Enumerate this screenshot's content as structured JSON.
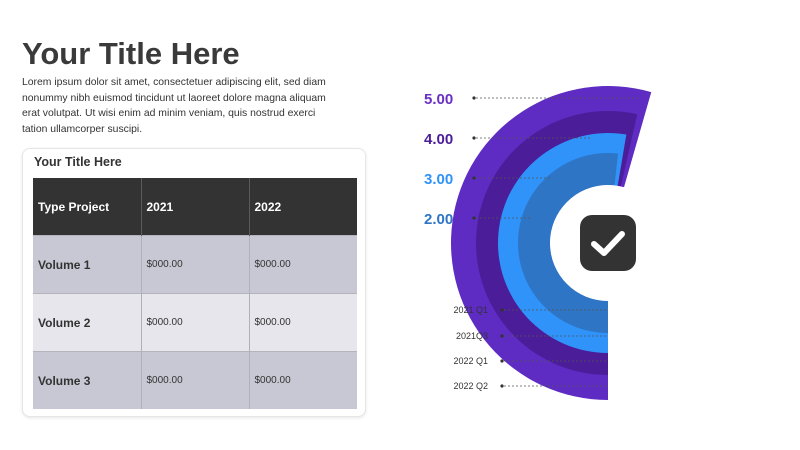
{
  "page": {
    "title": "Your Title Here",
    "body": "Lorem ipsum dolor sit amet, consectetuer adipiscing elit, sed diam nonummy nibh euismod tincidunt ut laoreet dolore magna aliquam erat volutpat. Ut wisi enim ad minim veniam, quis nostrud exerci tation ullamcorper suscipi."
  },
  "table": {
    "title": "Your Title Here",
    "headers": [
      "Type Project",
      "2021",
      "2022"
    ],
    "rows": [
      {
        "label": "Volume 1",
        "values": [
          "$000.00",
          "$000.00"
        ]
      },
      {
        "label": "Volume 2",
        "values": [
          "$000.00",
          "$000.00"
        ]
      },
      {
        "label": "Volume 3",
        "values": [
          "$000.00",
          "$000.00"
        ]
      }
    ]
  },
  "chart_data": {
    "type": "radial-bar",
    "title": "",
    "series": [
      {
        "category": "2021 Q1",
        "value": 2.0,
        "color": "#2E75C6"
      },
      {
        "category": "2021Q3",
        "value": 3.0,
        "color": "#2F93F9"
      },
      {
        "category": "2022 Q1",
        "value": 4.0,
        "color": "#4B1D99"
      },
      {
        "category": "2022 Q2",
        "value": 5.0,
        "color": "#5E2BC3"
      }
    ],
    "value_labels": [
      "5.00",
      "4.00",
      "3.00",
      "2.00"
    ],
    "value_label_colors": [
      "#6A2FC5",
      "#4B1D99",
      "#2F93F9",
      "#2E75C6"
    ],
    "center_icon": "checkmark-icon"
  }
}
